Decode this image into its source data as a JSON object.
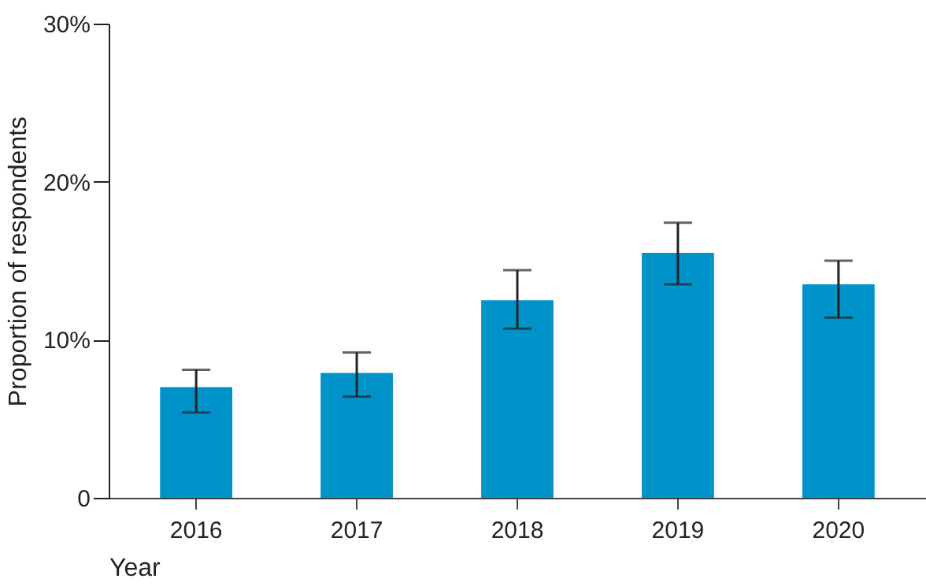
{
  "chart_data": {
    "type": "bar",
    "xlabel": "Year",
    "ylabel": "Proportion of respondents",
    "categories": [
      "2016",
      "2017",
      "2018",
      "2019",
      "2020"
    ],
    "values": [
      7.0,
      7.9,
      12.5,
      15.5,
      13.5
    ],
    "errors": [
      [
        5.4,
        8.1
      ],
      [
        6.4,
        9.2
      ],
      [
        10.7,
        14.4
      ],
      [
        13.5,
        17.4
      ],
      [
        11.4,
        15.0
      ]
    ],
    "color": "#0093c9",
    "ylim": [
      0,
      30
    ],
    "yticks": [
      0,
      {
        "value": 10,
        "label": "10%"
      },
      {
        "value": 20,
        "label": "20%"
      },
      {
        "value": 30,
        "label": "30%"
      }
    ],
    "grid": false
  }
}
